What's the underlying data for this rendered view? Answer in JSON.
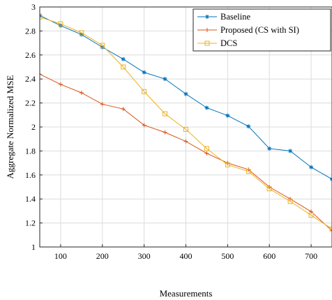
{
  "chart_data": {
    "type": "line",
    "xlabel": "Measurements",
    "ylabel": "Aggregate Normalized MSE",
    "xlim": [
      50,
      750
    ],
    "ylim": [
      1,
      3
    ],
    "xticks": [
      100,
      200,
      300,
      400,
      500,
      600,
      700
    ],
    "xtick_labels": [
      "100",
      "200",
      "300",
      "400",
      "500",
      "600",
      "700"
    ],
    "yticks": [
      1,
      1.2,
      1.4,
      1.6,
      1.8,
      2,
      2.2,
      2.4,
      2.6,
      2.8,
      3
    ],
    "ytick_labels": [
      "1",
      "1.2",
      "1.4",
      "1.6",
      "1.8",
      "2",
      "2.2",
      "2.4",
      "2.6",
      "2.8",
      "3"
    ],
    "grid": true,
    "legend_position": "top-right",
    "x": [
      50,
      100,
      150,
      200,
      250,
      300,
      350,
      400,
      450,
      500,
      550,
      600,
      650,
      700,
      750
    ],
    "series": [
      {
        "name": "Baseline",
        "color": "#0072BD",
        "marker": "asterisk",
        "values": [
          2.93,
          2.845,
          2.77,
          2.665,
          2.565,
          2.455,
          2.4,
          2.275,
          2.16,
          2.095,
          2.005,
          1.82,
          1.8,
          1.665,
          1.565
        ]
      },
      {
        "name": "Proposed (CS with SI)",
        "color": "#D95319",
        "marker": "plus",
        "values": [
          2.44,
          2.355,
          2.285,
          2.19,
          2.15,
          2.015,
          1.955,
          1.88,
          1.78,
          1.7,
          1.645,
          1.5,
          1.4,
          1.295,
          1.135
        ]
      },
      {
        "name": "DCS",
        "color": "#EDB120",
        "marker": "square",
        "values": [
          2.915,
          2.86,
          2.785,
          2.68,
          2.5,
          2.295,
          2.11,
          1.98,
          1.82,
          1.685,
          1.63,
          1.485,
          1.38,
          1.265,
          1.15
        ]
      }
    ]
  }
}
